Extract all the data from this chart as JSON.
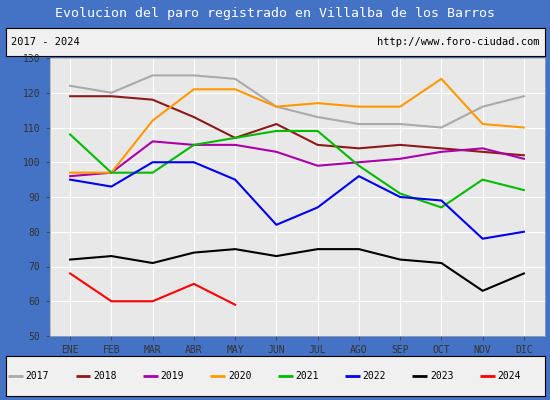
{
  "title": "Evolucion del paro registrado en Villalba de los Barros",
  "subtitle_left": "2017 - 2024",
  "subtitle_right": "http://www.foro-ciudad.com",
  "months": [
    "ENE",
    "FEB",
    "MAR",
    "ABR",
    "MAY",
    "JUN",
    "JUL",
    "AGO",
    "SEP",
    "OCT",
    "NOV",
    "DIC"
  ],
  "ylim": [
    50,
    130
  ],
  "yticks": [
    50,
    60,
    70,
    80,
    90,
    100,
    110,
    120,
    130
  ],
  "series": {
    "2017": {
      "color": "#aaaaaa",
      "values": [
        122,
        120,
        125,
        125,
        124,
        116,
        113,
        111,
        111,
        110,
        116,
        119
      ]
    },
    "2018": {
      "color": "#8b1a1a",
      "values": [
        119,
        119,
        118,
        113,
        107,
        111,
        105,
        104,
        105,
        104,
        103,
        102
      ]
    },
    "2019": {
      "color": "#aa00aa",
      "values": [
        96,
        97,
        106,
        105,
        105,
        103,
        99,
        100,
        101,
        103,
        104,
        101
      ]
    },
    "2020": {
      "color": "#ff9900",
      "values": [
        97,
        97,
        112,
        121,
        121,
        116,
        117,
        116,
        116,
        124,
        111,
        110
      ]
    },
    "2021": {
      "color": "#00bb00",
      "values": [
        108,
        97,
        97,
        105,
        107,
        109,
        109,
        99,
        91,
        87,
        95,
        92
      ]
    },
    "2022": {
      "color": "#0000ee",
      "values": [
        95,
        93,
        100,
        100,
        95,
        82,
        87,
        96,
        90,
        89,
        78,
        80
      ]
    },
    "2023": {
      "color": "#000000",
      "values": [
        72,
        73,
        71,
        74,
        75,
        73,
        75,
        75,
        72,
        71,
        63,
        68
      ]
    },
    "2024": {
      "color": "#ff0000",
      "values": [
        68,
        60,
        60,
        65,
        59,
        null,
        null,
        null,
        null,
        null,
        null,
        null
      ]
    }
  },
  "title_bg_color": "#4472c4",
  "title_fg_color": "#ffffff",
  "subtitle_bg_color": "#f0f0f0",
  "subtitle_fg_color": "#000000",
  "plot_bg_color": "#e8e8e8",
  "grid_color": "#ffffff",
  "legend_bg_color": "#f0f0f0"
}
